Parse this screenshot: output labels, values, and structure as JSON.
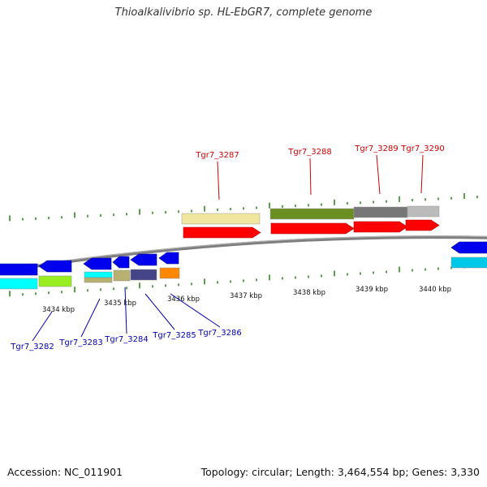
{
  "title": "Thioalkalivibrio sp. HL-EbGR7, complete genome",
  "footer": {
    "accession": "Accession: NC_011901",
    "topology": "Topology: circular; Length: 3,464,554 bp; Genes: 3,330"
  },
  "colors": {
    "background": "#ffffff",
    "backbone": "#8c8c8c",
    "tick": "#2e8b1e",
    "forward_label": "#cc0000",
    "reverse_label": "#0000aa",
    "cds": "#ff0000",
    "cds_reverse": "#0000ee",
    "cog_category_1": "#f0e6a0",
    "cog_category_2": "#6b8e23",
    "cog_category_3": "#777777",
    "cog_category_4": "#bbbbbb",
    "cog_category_5": "#00ffff",
    "cog_category_6": "#99ee22",
    "cog_category_7": "#b8b070",
    "cog_category_8": "#444488",
    "cog_category_9": "#ff8800",
    "cog_category_10": "#00c8e8"
  },
  "scale_labels": [
    "3434 kbp",
    "3435 kbp",
    "3436 kbp",
    "3437 kbp",
    "3438 kbp",
    "3439 kbp",
    "3440 kbp"
  ],
  "genes_forward": [
    {
      "label": "Tgr7_3287",
      "cog": "cog_category_1"
    },
    {
      "label": "Tgr7_3288",
      "cog": "cog_category_2"
    },
    {
      "label": "Tgr7_3289",
      "cog": "cog_category_3"
    },
    {
      "label": "Tgr7_3290",
      "cog": "cog_category_4"
    }
  ],
  "genes_reverse": [
    {
      "label": "Tgr7_3282",
      "cog": "cog_category_6"
    },
    {
      "label": "Tgr7_3283",
      "cog": "cog_category_7"
    },
    {
      "label": "Tgr7_3284",
      "cog": "cog_category_7"
    },
    {
      "label": "Tgr7_3285",
      "cog": "cog_category_8"
    },
    {
      "label": "Tgr7_3286",
      "cog": "cog_category_9"
    }
  ]
}
